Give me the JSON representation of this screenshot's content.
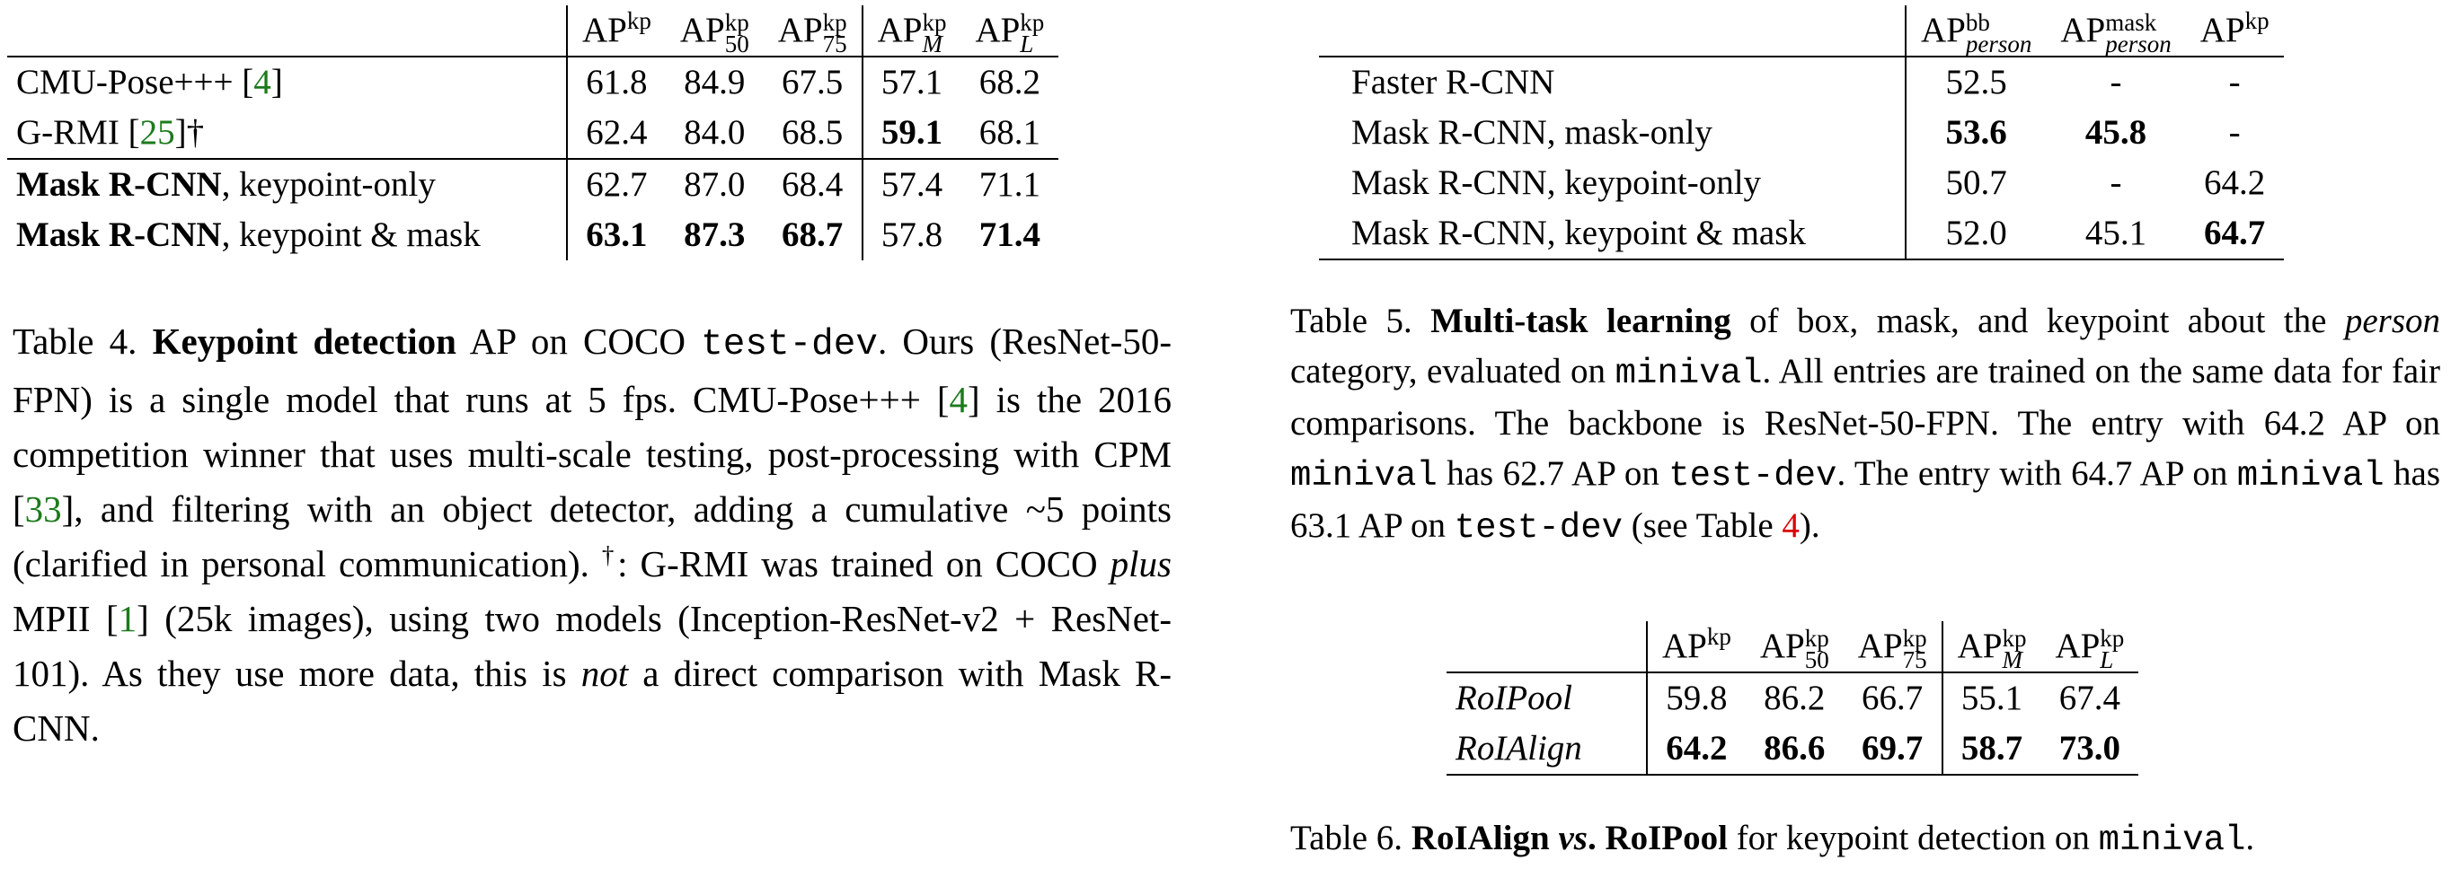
{
  "table4": {
    "header": {
      "c1_base": "AP",
      "c1_sup": "kp",
      "c2_base": "AP",
      "c2_sup": "kp",
      "c2_sub": "50",
      "c3_base": "AP",
      "c3_sup": "kp",
      "c3_sub": "75",
      "c4_base": "AP",
      "c4_sup": "kp",
      "c4_sub": "M",
      "c5_base": "AP",
      "c5_sup": "kp",
      "c5_sub": "L"
    },
    "rows": [
      {
        "name": "CMU-Pose+++ [",
        "ref": "4",
        "tail": "]",
        "v": [
          "61.8",
          "84.9",
          "67.5",
          "57.1",
          "68.2"
        ]
      },
      {
        "name": "G-RMI [",
        "ref": "25",
        "tail": "]†",
        "v": [
          "62.4",
          "84.0",
          "68.5",
          "59.1",
          "68.1"
        ]
      },
      {
        "bold": "Mask R-CNN",
        "rest": ", keypoint-only",
        "v": [
          "62.7",
          "87.0",
          "68.4",
          "57.4",
          "71.1"
        ]
      },
      {
        "bold": "Mask R-CNN",
        "rest": ", keypoint & mask",
        "v": [
          "63.1",
          "87.3",
          "68.7",
          "57.8",
          "71.4"
        ]
      }
    ],
    "caption": {
      "label": "Table 4. ",
      "bold": "Keypoint detection",
      "t1": " AP on COCO ",
      "mono1": "test-dev",
      "t2": ". Ours (ResNet-50-FPN) is a single model that runs at 5 fps. CMU-Pose+++ [",
      "ref1": "4",
      "t3": "] is the 2016 competition winner that uses multi-scale testing, post-processing with CPM [",
      "ref2": "33",
      "t4": "], and filtering with an object detector, adding a cumulative ~5 points (clarified in personal communication). ",
      "dag": "†",
      "t5": ": G-RMI was trained on COCO ",
      "em1": "plus",
      "t6": " MPII [",
      "ref3": "1",
      "t7": "] (25k images), using two models (Inception-ResNet-v2 + ResNet-101). As they use more data, this is ",
      "em2": "not",
      "t8": " a direct comparison with Mask R-CNN."
    }
  },
  "table5": {
    "header": {
      "c1_base": "AP",
      "c1_sup": "bb",
      "c1_sub": "person",
      "c2_base": "AP",
      "c2_sup": "mask",
      "c2_sub": "person",
      "c3_base": "AP",
      "c3_sup": "kp"
    },
    "rows": [
      {
        "name": "Faster R-CNN",
        "v": [
          "52.5",
          "-",
          "-"
        ]
      },
      {
        "name": "Mask R-CNN, mask-only",
        "v": [
          "53.6",
          "45.8",
          "-"
        ]
      },
      {
        "name": "Mask R-CNN, keypoint-only",
        "v": [
          "50.7",
          "-",
          "64.2"
        ]
      },
      {
        "name": "Mask R-CNN, keypoint & mask",
        "v": [
          "52.0",
          "45.1",
          "64.7"
        ]
      }
    ],
    "caption": {
      "label": "Table 5. ",
      "bold": "Multi-task learning",
      "t1": " of box, mask, and keypoint about the ",
      "em1": "person",
      "t2": " category, evaluated on ",
      "mono1": "minival",
      "t3": ". All entries are trained on the same data for fair comparisons. The backbone is ResNet-50-FPN. The entry with 64.2 AP on ",
      "mono2": "minival",
      "t4": " has 62.7 AP on ",
      "mono3": "test-dev",
      "t5": ". The entry with 64.7 AP on ",
      "mono4": "minival",
      "t6": " has 63.1 AP on ",
      "mono5": "test-dev",
      "t7": " (see Table ",
      "ref1": "4",
      "t8": ")."
    }
  },
  "table6": {
    "header": {
      "c1_base": "AP",
      "c1_sup": "kp",
      "c2_base": "AP",
      "c2_sup": "kp",
      "c2_sub": "50",
      "c3_base": "AP",
      "c3_sup": "kp",
      "c3_sub": "75",
      "c4_base": "AP",
      "c4_sup": "kp",
      "c4_sub": "M",
      "c5_base": "AP",
      "c5_sup": "kp",
      "c5_sub": "L"
    },
    "rows": [
      {
        "name": "RoIPool",
        "v": [
          "59.8",
          "86.2",
          "66.7",
          "55.1",
          "67.4"
        ]
      },
      {
        "name": "RoIAlign",
        "v": [
          "64.2",
          "86.6",
          "69.7",
          "58.7",
          "73.0"
        ]
      }
    ],
    "caption": {
      "label": "Table 6. ",
      "bold1": "RoIAlign",
      "em1": " vs",
      ". ": "",
      "bold2": ". RoIPool",
      "t1": " for keypoint detection on ",
      "mono1": "minival",
      "t2": "."
    }
  },
  "colors": {
    "citation": "#1c7a1c",
    "table_ref": "#dd0000"
  }
}
